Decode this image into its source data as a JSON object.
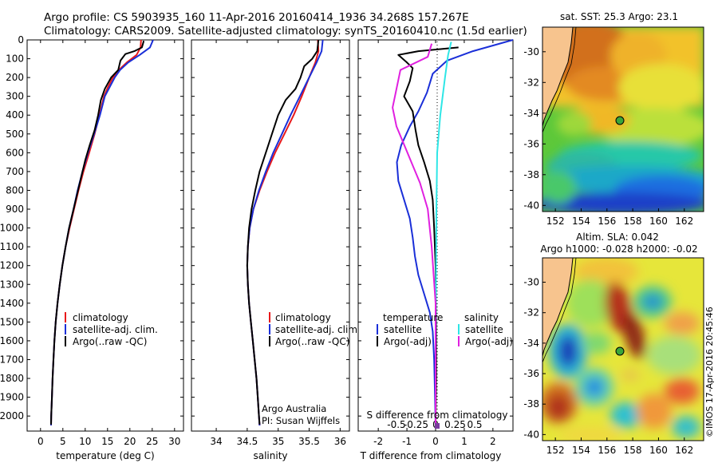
{
  "header": {
    "line1": "Argo profile: CS 5903935_160 11-Apr-2016 20160414_1936 34.268S 157.267E",
    "line2": "Climatology: CARS2009. Satellite-adjusted climatology: synTS_20160410.nc (1.5d earlier)"
  },
  "footer_credit": "©IMOS 17-Apr-2016 20:45:46",
  "colors": {
    "climatology": "#e8191b",
    "satellite": "#1a2fd8",
    "argo": "#000000",
    "sal_satellite": "#2ee6e6",
    "sal_argo": "#e020e0",
    "land": "#f7c48e"
  },
  "chart_data": [
    {
      "id": "temperature",
      "type": "line",
      "xlabel": "temperature (deg C)",
      "ylabel": "",
      "xlim": [
        -3,
        32
      ],
      "ylim": [
        2080,
        0
      ],
      "xticks": [
        0,
        5,
        10,
        15,
        20,
        25,
        30
      ],
      "yticks": [
        0,
        100,
        200,
        300,
        400,
        500,
        600,
        700,
        800,
        900,
        1000,
        1100,
        1200,
        1300,
        1400,
        1500,
        1600,
        1700,
        1800,
        1900,
        2000
      ],
      "legend": [
        "climatology",
        "satellite-adj. clim.",
        "Argo(..raw -QC)"
      ],
      "legend_position": "lower-center",
      "series": [
        {
          "name": "climatology",
          "color": "#e8191b",
          "points": [
            [
              22.5,
              0
            ],
            [
              22.4,
              40
            ],
            [
              21.5,
              80
            ],
            [
              19.3,
              120
            ],
            [
              17.5,
              160
            ],
            [
              16.2,
              200
            ],
            [
              15.1,
              250
            ],
            [
              14.2,
              300
            ],
            [
              13.2,
              400
            ],
            [
              12.1,
              500
            ],
            [
              10.9,
              600
            ],
            [
              9.6,
              700
            ],
            [
              8.5,
              800
            ],
            [
              7.5,
              900
            ],
            [
              6.5,
              1000
            ],
            [
              5.6,
              1100
            ],
            [
              4.9,
              1200
            ],
            [
              4.3,
              1300
            ],
            [
              3.8,
              1400
            ],
            [
              3.4,
              1500
            ],
            [
              3.1,
              1600
            ],
            [
              2.9,
              1700
            ],
            [
              2.7,
              1800
            ],
            [
              2.55,
              1900
            ],
            [
              2.4,
              2000
            ],
            [
              2.35,
              2050
            ]
          ]
        },
        {
          "name": "satellite-adj. clim.",
          "color": "#1a2fd8",
          "points": [
            [
              25.2,
              0
            ],
            [
              24.5,
              40
            ],
            [
              22.2,
              80
            ],
            [
              19.6,
              120
            ],
            [
              17.8,
              160
            ],
            [
              16.6,
              200
            ],
            [
              15.5,
              250
            ],
            [
              14.4,
              300
            ],
            [
              13.3,
              400
            ],
            [
              12.0,
              500
            ],
            [
              10.6,
              600
            ],
            [
              9.4,
              700
            ],
            [
              8.3,
              800
            ],
            [
              7.4,
              900
            ],
            [
              6.4,
              1000
            ],
            [
              5.6,
              1100
            ],
            [
              4.9,
              1200
            ],
            [
              4.3,
              1300
            ],
            [
              3.8,
              1400
            ],
            [
              3.4,
              1500
            ],
            [
              3.1,
              1600
            ],
            [
              2.9,
              1700
            ],
            [
              2.7,
              1800
            ],
            [
              2.55,
              1900
            ],
            [
              2.4,
              2000
            ],
            [
              2.35,
              2050
            ]
          ]
        },
        {
          "name": "Argo(..raw -QC)",
          "color": "#000000",
          "points": [
            [
              23.1,
              5
            ],
            [
              22.7,
              40
            ],
            [
              21.0,
              60
            ],
            [
              19.0,
              75
            ],
            [
              17.9,
              110
            ],
            [
              17.4,
              160
            ],
            [
              15.8,
              200
            ],
            [
              14.4,
              260
            ],
            [
              13.5,
              320
            ],
            [
              12.9,
              400
            ],
            [
              12.1,
              480
            ],
            [
              11.0,
              560
            ],
            [
              10.0,
              640
            ],
            [
              9.2,
              720
            ],
            [
              8.4,
              800
            ],
            [
              7.4,
              900
            ],
            [
              6.4,
              1000
            ],
            [
              5.6,
              1100
            ],
            [
              4.9,
              1200
            ],
            [
              4.3,
              1300
            ],
            [
              3.8,
              1400
            ],
            [
              3.4,
              1500
            ],
            [
              3.1,
              1600
            ],
            [
              2.9,
              1700
            ],
            [
              2.7,
              1800
            ],
            [
              2.55,
              1900
            ],
            [
              2.4,
              2000
            ],
            [
              2.35,
              2045
            ]
          ]
        }
      ]
    },
    {
      "id": "salinity",
      "type": "line",
      "xlabel": "salinity",
      "xlim": [
        33.6,
        36.15
      ],
      "ylim": [
        2080,
        0
      ],
      "xticks": [
        34,
        34.5,
        35,
        35.5,
        36
      ],
      "xticklabels": [
        "34",
        "34.5",
        "35",
        "35.5",
        "36"
      ],
      "legend": [
        "climatology",
        "satellite-adj. clim.",
        "Argo(..raw -QC)"
      ],
      "legend_position": "lower-center",
      "annotations": [
        "Argo Australia",
        "PI: Susan Wijffels"
      ],
      "series": [
        {
          "name": "climatology",
          "color": "#e8191b",
          "points": [
            [
              35.64,
              0
            ],
            [
              35.65,
              60
            ],
            [
              35.6,
              120
            ],
            [
              35.5,
              200
            ],
            [
              35.38,
              300
            ],
            [
              35.25,
              400
            ],
            [
              35.1,
              500
            ],
            [
              34.95,
              600
            ],
            [
              34.82,
              700
            ],
            [
              34.7,
              800
            ],
            [
              34.6,
              900
            ],
            [
              34.54,
              1000
            ],
            [
              34.51,
              1100
            ],
            [
              34.5,
              1200
            ],
            [
              34.51,
              1300
            ],
            [
              34.53,
              1400
            ],
            [
              34.56,
              1500
            ],
            [
              34.59,
              1600
            ],
            [
              34.62,
              1700
            ],
            [
              34.65,
              1800
            ],
            [
              34.67,
              1900
            ],
            [
              34.69,
              2000
            ],
            [
              34.7,
              2050
            ]
          ]
        },
        {
          "name": "satellite-adj. clim.",
          "color": "#1a2fd8",
          "points": [
            [
              35.72,
              0
            ],
            [
              35.7,
              60
            ],
            [
              35.62,
              120
            ],
            [
              35.5,
              200
            ],
            [
              35.35,
              300
            ],
            [
              35.2,
              400
            ],
            [
              35.06,
              500
            ],
            [
              34.92,
              600
            ],
            [
              34.8,
              700
            ],
            [
              34.69,
              800
            ],
            [
              34.6,
              900
            ],
            [
              34.54,
              1000
            ],
            [
              34.51,
              1100
            ],
            [
              34.5,
              1200
            ],
            [
              34.51,
              1300
            ],
            [
              34.53,
              1400
            ],
            [
              34.56,
              1500
            ],
            [
              34.59,
              1600
            ],
            [
              34.62,
              1700
            ],
            [
              34.65,
              1800
            ],
            [
              34.67,
              1900
            ],
            [
              34.69,
              2000
            ],
            [
              34.7,
              2050
            ]
          ]
        },
        {
          "name": "Argo(..raw -QC)",
          "color": "#000000",
          "points": [
            [
              35.65,
              0
            ],
            [
              35.63,
              60
            ],
            [
              35.55,
              100
            ],
            [
              35.42,
              140
            ],
            [
              35.36,
              200
            ],
            [
              35.28,
              260
            ],
            [
              35.12,
              320
            ],
            [
              35.0,
              400
            ],
            [
              34.9,
              500
            ],
            [
              34.8,
              600
            ],
            [
              34.7,
              700
            ],
            [
              34.63,
              800
            ],
            [
              34.57,
              900
            ],
            [
              34.53,
              1000
            ],
            [
              34.51,
              1100
            ],
            [
              34.5,
              1200
            ],
            [
              34.51,
              1300
            ],
            [
              34.53,
              1400
            ],
            [
              34.56,
              1500
            ],
            [
              34.59,
              1600
            ],
            [
              34.62,
              1700
            ],
            [
              34.65,
              1800
            ],
            [
              34.67,
              1900
            ],
            [
              34.69,
              2000
            ],
            [
              34.7,
              2045
            ]
          ]
        }
      ]
    },
    {
      "id": "difference",
      "type": "line",
      "xlabel": "T difference from climatology",
      "x2label": "S difference from climatology",
      "xlim": [
        -2.7,
        2.7
      ],
      "ylim": [
        2080,
        0
      ],
      "xticks": [
        -2,
        -1,
        0,
        1,
        2
      ],
      "x2ticks": [
        -0.5,
        -0.25,
        0,
        0.25,
        0.5
      ],
      "x2ticklabels": [
        "-0.5",
        "-0.25",
        "0",
        "0.25",
        "0.5"
      ],
      "legend_left_title": "temperature",
      "legend_right_title": "salinity",
      "legend_left": [
        "satellite",
        "Argo(-adj)"
      ],
      "legend_right": [
        "satellite",
        "Argo(-adj)"
      ],
      "legend_position": "lower-center",
      "series": [
        {
          "name": "T satellite",
          "color": "#1a2fd8",
          "points": [
            [
              2.7,
              0
            ],
            [
              1.3,
              60
            ],
            [
              0.4,
              110
            ],
            [
              -0.1,
              180
            ],
            [
              -0.3,
              280
            ],
            [
              -0.6,
              380
            ],
            [
              -0.9,
              460
            ],
            [
              -1.2,
              560
            ],
            [
              -1.35,
              650
            ],
            [
              -1.3,
              750
            ],
            [
              -1.1,
              850
            ],
            [
              -0.9,
              950
            ],
            [
              -0.8,
              1050
            ],
            [
              -0.72,
              1150
            ],
            [
              -0.6,
              1250
            ],
            [
              -0.4,
              1350
            ],
            [
              -0.2,
              1450
            ],
            [
              -0.1,
              1550
            ],
            [
              -0.05,
              1700
            ],
            [
              -0.02,
              1900
            ],
            [
              0,
              2050
            ]
          ]
        },
        {
          "name": "T Argo(-adj)",
          "color": "#000000",
          "points": [
            [
              0.8,
              40
            ],
            [
              -0.6,
              60
            ],
            [
              -1.3,
              80
            ],
            [
              -1.0,
              120
            ],
            [
              -0.8,
              150
            ],
            [
              -0.9,
              220
            ],
            [
              -1.1,
              300
            ],
            [
              -0.8,
              380
            ],
            [
              -0.7,
              480
            ],
            [
              -0.6,
              560
            ],
            [
              -0.4,
              650
            ],
            [
              -0.2,
              750
            ],
            [
              -0.1,
              850
            ],
            [
              -0.05,
              1000
            ],
            [
              0,
              1200
            ],
            [
              0.02,
              1500
            ],
            [
              0.02,
              1800
            ],
            [
              0,
              2050
            ]
          ]
        },
        {
          "name": "S satellite",
          "color": "#2ee6e6",
          "points": [
            [
              0.2,
              10
            ],
            [
              0.16,
              80
            ],
            [
              0.12,
              200
            ],
            [
              0.06,
              400
            ],
            [
              0.02,
              600
            ],
            [
              0.01,
              900
            ],
            [
              0.005,
              1300
            ],
            [
              0,
              1700
            ],
            [
              0,
              2050
            ]
          ]
        },
        {
          "name": "S Argo(-adj)",
          "color": "#e020e0",
          "points": [
            [
              -0.05,
              20
            ],
            [
              -0.1,
              90
            ],
            [
              -0.45,
              160
            ],
            [
              -0.5,
              260
            ],
            [
              -0.55,
              360
            ],
            [
              -0.5,
              460
            ],
            [
              -0.4,
              560
            ],
            [
              -0.3,
              660
            ],
            [
              -0.2,
              760
            ],
            [
              -0.1,
              900
            ],
            [
              -0.05,
              1100
            ],
            [
              0,
              1400
            ],
            [
              0,
              2045
            ]
          ]
        }
      ]
    },
    {
      "id": "map-sst",
      "type": "heatmap",
      "title": "sat. SST: 25.3 Argo: 23.1",
      "xlim": [
        151,
        163.5
      ],
      "ylim": [
        -40.4,
        -28.4
      ],
      "xticks": [
        152,
        154,
        156,
        158,
        160,
        162
      ],
      "yticks": [
        -30,
        -32,
        -34,
        -36,
        -38,
        -40
      ],
      "marker": {
        "lon": 157.267,
        "lat": -34.268
      }
    },
    {
      "id": "map-sla",
      "type": "heatmap",
      "title": "Altim. SLA: 0.042",
      "subtitle": "Argo h1000: -0.028 h2000: -0.02",
      "xlim": [
        151,
        163.5
      ],
      "ylim": [
        -40.4,
        -28.4
      ],
      "xticks": [
        152,
        154,
        156,
        158,
        160,
        162
      ],
      "yticks": [
        -30,
        -32,
        -34,
        -36,
        -38,
        -40
      ],
      "marker": {
        "lon": 157.267,
        "lat": -34.268
      }
    }
  ]
}
